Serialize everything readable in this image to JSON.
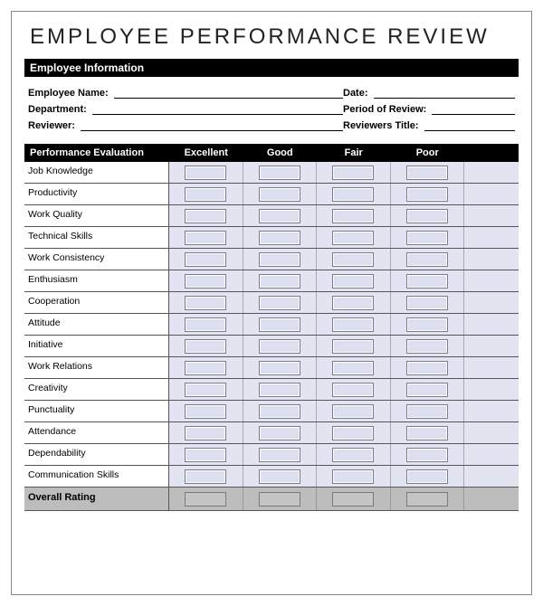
{
  "title": "EMPLOYEE  PERFORMANCE  REVIEW",
  "info_section_header": "Employee Information",
  "info_fields": {
    "left": [
      {
        "label": "Employee Name:"
      },
      {
        "label": "Department:"
      },
      {
        "label": "Reviewer:"
      }
    ],
    "right": [
      {
        "label": "Date:"
      },
      {
        "label": "Period of Review:"
      },
      {
        "label": "Reviewers Title:"
      }
    ]
  },
  "eval_header": "Performance Evaluation",
  "rating_columns": [
    "Excellent",
    "Good",
    "Fair",
    "Poor"
  ],
  "criteria": [
    "Job Knowledge",
    "Productivity",
    "Work Quality",
    "Technical Skills",
    "Work Consistency",
    "Enthusiasm",
    "Cooperation",
    "Attitude",
    "Initiative",
    "Work Relations",
    "Creativity",
    "Punctuality",
    "Attendance",
    "Dependability",
    "Communication Skills"
  ],
  "overall_label": "Overall Rating",
  "colors": {
    "header_bg": "#000000",
    "header_text": "#ffffff",
    "cell_bg": "#e2e4f2",
    "box_bg": "#dcdff0",
    "box_border": "#7a7a8a",
    "overall_bg": "#bdbdbd",
    "rule": "#555555"
  }
}
